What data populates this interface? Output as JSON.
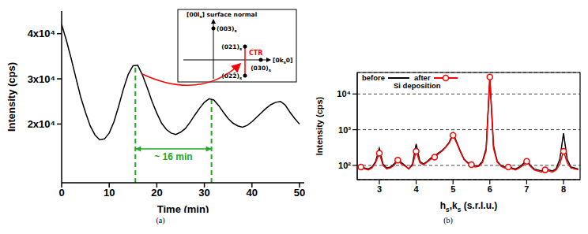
{
  "chart_data": [
    {
      "type": "line",
      "caption": "(a)",
      "x_label": "Time (min)",
      "y_label": "Intensity (cps)",
      "grid": false,
      "xlim": [
        0,
        51
      ],
      "xticks": [
        0,
        10,
        20,
        30,
        40,
        50
      ],
      "ylim": [
        7000,
        45000
      ],
      "yticks": [
        {
          "value": 20000,
          "label": "2x10⁴"
        },
        {
          "value": 30000,
          "label": "3x10⁴"
        },
        {
          "value": 40000,
          "label": "4x10⁴"
        }
      ],
      "x": [
        0,
        1,
        2,
        3,
        4,
        5,
        6,
        7,
        8,
        9,
        10,
        11,
        12,
        13,
        14,
        15,
        16,
        17,
        18,
        19,
        20,
        21,
        22,
        23,
        24,
        25,
        26,
        27,
        28,
        29,
        30,
        31,
        32,
        33,
        34,
        35,
        36,
        37,
        38,
        39,
        40,
        41,
        42,
        43,
        44,
        45,
        46,
        47,
        48,
        49,
        50
      ],
      "series": [
        {
          "color": "#000000",
          "values": [
            42000,
            38500,
            34500,
            30200,
            26000,
            22600,
            19600,
            17600,
            16500,
            16700,
            18000,
            20500,
            24000,
            27800,
            31000,
            32900,
            33000,
            30800,
            28000,
            25000,
            22400,
            20200,
            18800,
            18000,
            17700,
            18200,
            19000,
            20400,
            22000,
            23500,
            24800,
            25600,
            25300,
            24100,
            22600,
            21200,
            20200,
            19600,
            19300,
            19700,
            20500,
            21500,
            22500,
            23500,
            24300,
            24800,
            25000,
            24200,
            22600,
            21200,
            20000
          ]
        }
      ],
      "annotations": {
        "period_lines": {
          "color": "#22aa22",
          "x": [
            15.5,
            31.5
          ],
          "y_top": [
            33000,
            25500
          ]
        },
        "period_label": {
          "text": "~ 16 min",
          "y": 14500
        },
        "inset": {
          "color": "#ff0000",
          "labels": {
            "normal": [
              "[00l",
              "s",
              "] surface normal"
            ],
            "axis": [
              "[0k",
              "s",
              "0]"
            ],
            "p003": [
              "(003)",
              "s"
            ],
            "p021": [
              "(021)",
              "s"
            ],
            "p022": [
              "(022̄)",
              "s"
            ],
            "p030": [
              "(030)",
              "s"
            ],
            "ctr": "CTR"
          }
        }
      }
    },
    {
      "type": "line",
      "caption": "(b)",
      "x_label": [
        "h",
        "s",
        ",k",
        "s",
        " (s.r.l.u.)"
      ],
      "y_label": "Intensity (cps)",
      "log": "y",
      "grid": true,
      "legend": "upper left",
      "annotation": "Si deposition",
      "xlim": [
        2.4,
        8.45
      ],
      "xticks": [
        3,
        4,
        5,
        6,
        7,
        8
      ],
      "ylim": [
        40,
        40000
      ],
      "yticks": [
        {
          "value": 100,
          "label": "10²"
        },
        {
          "value": 1000,
          "label": "10³"
        },
        {
          "value": 10000,
          "label": "10⁴"
        }
      ],
      "x": [
        2.4,
        2.5,
        2.6,
        2.7,
        2.8,
        2.9,
        3.0,
        3.1,
        3.2,
        3.3,
        3.4,
        3.5,
        3.6,
        3.7,
        3.8,
        3.9,
        4.0,
        4.1,
        4.2,
        4.3,
        4.4,
        4.5,
        4.6,
        4.7,
        4.8,
        4.9,
        5.0,
        5.1,
        5.2,
        5.3,
        5.4,
        5.5,
        5.6,
        5.7,
        5.8,
        5.9,
        6.0,
        6.1,
        6.2,
        6.3,
        6.4,
        6.5,
        6.6,
        6.7,
        6.8,
        6.9,
        7.0,
        7.1,
        7.2,
        7.3,
        7.4,
        7.5,
        7.6,
        7.7,
        7.8,
        7.9,
        8.0,
        8.1,
        8.2,
        8.3,
        8.4
      ],
      "series": [
        {
          "name": "before",
          "color": "#000000",
          "values": [
            90,
            95,
            85,
            80,
            90,
            130,
            300,
            110,
            85,
            90,
            110,
            150,
            120,
            100,
            80,
            110,
            400,
            130,
            110,
            130,
            160,
            180,
            220,
            260,
            330,
            450,
            800,
            450,
            250,
            150,
            120,
            110,
            95,
            100,
            130,
            300,
            28000,
            350,
            130,
            100,
            90,
            95,
            85,
            80,
            90,
            110,
            150,
            100,
            80,
            75,
            70,
            80,
            75,
            70,
            80,
            150,
            800,
            150,
            90,
            85,
            80
          ]
        },
        {
          "name": "after",
          "color": "#ff0000",
          "marker": "circle",
          "values": [
            80,
            90,
            80,
            75,
            85,
            120,
            220,
            100,
            80,
            85,
            100,
            140,
            110,
            95,
            80,
            100,
            250,
            120,
            105,
            125,
            150,
            170,
            210,
            250,
            320,
            430,
            700,
            420,
            240,
            145,
            115,
            105,
            90,
            95,
            120,
            260,
            30000,
            300,
            125,
            95,
            85,
            90,
            80,
            75,
            85,
            100,
            130,
            95,
            75,
            70,
            65,
            75,
            70,
            65,
            75,
            110,
            250,
            120,
            85,
            80,
            75
          ]
        }
      ]
    }
  ]
}
